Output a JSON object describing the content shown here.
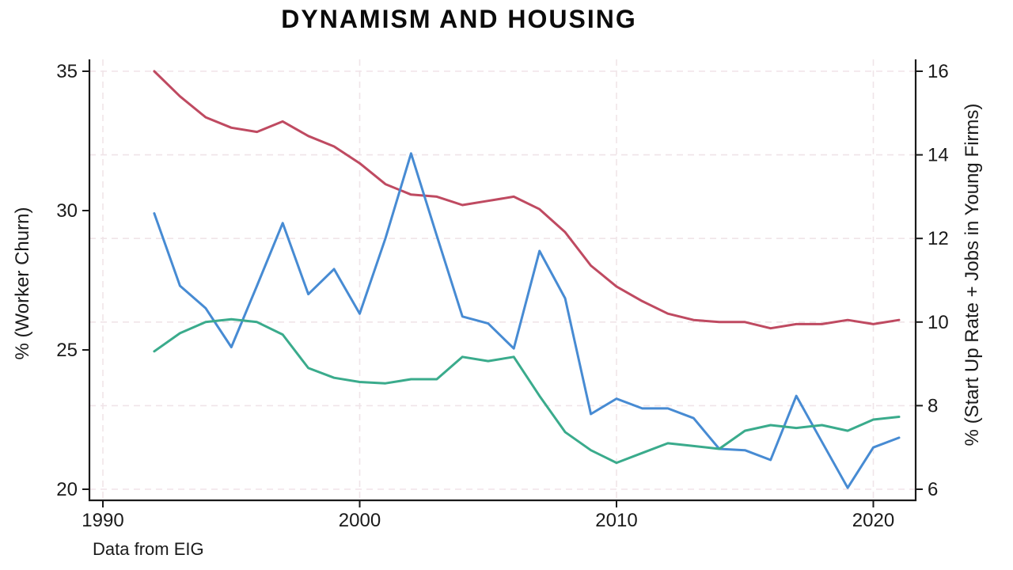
{
  "page": {
    "background": "#ffffff"
  },
  "chart_data": {
    "type": "line",
    "title": "DYNAMISM AND HOUSING",
    "note": "Data from EIG",
    "x": [
      1992,
      1993,
      1994,
      1995,
      1996,
      1997,
      1998,
      1999,
      2000,
      2001,
      2002,
      2003,
      2004,
      2005,
      2006,
      2007,
      2008,
      2009,
      2010,
      2011,
      2012,
      2013,
      2014,
      2015,
      2016,
      2017,
      2018,
      2019,
      2020,
      2021
    ],
    "x_ticks": [
      1990,
      2000,
      2010,
      2020
    ],
    "x_range": [
      1990,
      2021.7
    ],
    "left_axis": {
      "label": "% (Worker Churn)",
      "ticks": [
        35,
        30,
        25,
        20
      ],
      "range": [
        20,
        35
      ]
    },
    "right_axis": {
      "label": "% (Start Up Rate + Jobs in Young Firms)",
      "ticks": [
        16,
        14,
        12,
        10,
        8,
        6
      ],
      "range": [
        6,
        16
      ]
    },
    "grid": {
      "style": "dashed",
      "color": "#f0e4e8",
      "horizontal_at_right_axis_ticks": true,
      "vertical_at_x_ticks": true
    },
    "axis_color": "#1a1a1a",
    "series": [
      {
        "name": "red-line",
        "axis": "right",
        "color": "#bf4a61",
        "values": [
          16.0,
          15.4,
          14.9,
          14.65,
          14.55,
          14.8,
          14.45,
          14.2,
          13.8,
          13.3,
          13.05,
          13.0,
          12.8,
          12.9,
          13.0,
          12.7,
          12.15,
          11.35,
          10.85,
          10.5,
          10.2,
          10.05,
          10.0,
          10.0,
          9.85,
          9.95,
          9.95,
          10.05,
          9.95,
          10.05
        ]
      },
      {
        "name": "blue-line",
        "axis": "left",
        "color": "#478bd3",
        "values": [
          29.9,
          27.3,
          26.5,
          25.1,
          27.3,
          29.55,
          27.0,
          27.9,
          26.3,
          29.0,
          32.05,
          29.1,
          26.2,
          25.95,
          25.05,
          28.55,
          26.85,
          22.7,
          23.25,
          22.9,
          22.9,
          22.55,
          21.45,
          21.4,
          21.05,
          23.35,
          21.7,
          20.05,
          21.5,
          21.85
        ]
      },
      {
        "name": "green-line",
        "axis": "left",
        "color": "#3aab8c",
        "values": [
          24.95,
          25.6,
          26.0,
          26.1,
          26.0,
          25.55,
          24.35,
          24.0,
          23.85,
          23.8,
          23.95,
          23.95,
          24.75,
          24.6,
          24.75,
          23.35,
          22.05,
          21.4,
          20.95,
          21.3,
          21.65,
          21.55,
          21.45,
          22.1,
          22.3,
          22.2,
          22.3,
          22.1,
          22.5,
          22.6
        ]
      }
    ]
  }
}
